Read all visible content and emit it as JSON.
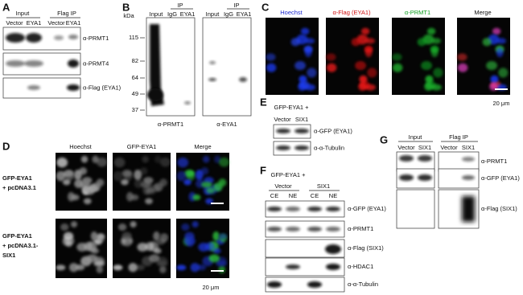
{
  "panel_a": {
    "label": "A",
    "groups": [
      "Input",
      "Flag IP"
    ],
    "lanes": [
      "Vector",
      "EYA1",
      "Vector",
      "EYA1"
    ],
    "blots": [
      "α-PRMT1",
      "α-PRMT4",
      "α-Flag (EYA1)"
    ]
  },
  "panel_b": {
    "label": "B",
    "unit": "kDa",
    "markers": [
      115,
      82,
      64,
      49,
      37
    ],
    "blots": [
      {
        "group": "IP",
        "lanes": [
          "Input",
          "IgG",
          "EYA1"
        ],
        "antibody": "α-PRMT1"
      },
      {
        "group": "IP",
        "lanes": [
          "Input",
          "IgG",
          "EYA1"
        ],
        "antibody": "α-EYA1"
      }
    ]
  },
  "panel_c": {
    "label": "C",
    "channels": [
      "Hoechst",
      "α-Flag (EYA1)",
      "α-PRMT1",
      "Merge"
    ],
    "scale_bar": "20 μm"
  },
  "panel_d": {
    "label": "D",
    "channels": [
      "Hoechst",
      "GFP-EYA1",
      "Merge"
    ],
    "rows": [
      [
        "GFP-EYA1",
        "+ pcDNA3.1"
      ],
      [
        "GFP-EYA1",
        "+ pcDNA3.1-",
        "SIX1"
      ]
    ],
    "scale_bar": "20 μm"
  },
  "panel_e": {
    "label": "E",
    "condition": "GFP-EYA1 +",
    "lanes": [
      "Vector",
      "SIX1"
    ],
    "blots": [
      "α-GFP (EYA1)",
      "α-α-Tubulin"
    ]
  },
  "panel_f": {
    "label": "F",
    "condition": "GFP-EYA1 +",
    "groups": [
      "Vector",
      "SIX1"
    ],
    "lanes": [
      "CE",
      "NE",
      "CE",
      "NE"
    ],
    "blots": [
      "α-GFP (EYA1)",
      "α-PRMT1",
      "α-Flag (SIX1)",
      "α-HDAC1",
      "α-α-Tubulin"
    ]
  },
  "panel_g": {
    "label": "G",
    "groups": [
      "Input",
      "Flag IP"
    ],
    "lanes": [
      "Vector",
      "SIX1",
      "Vector",
      "SIX1"
    ],
    "blots": [
      "α-PRMT1",
      "α-GFP (EYA1)",
      "α-Flag (SIX1)"
    ]
  }
}
